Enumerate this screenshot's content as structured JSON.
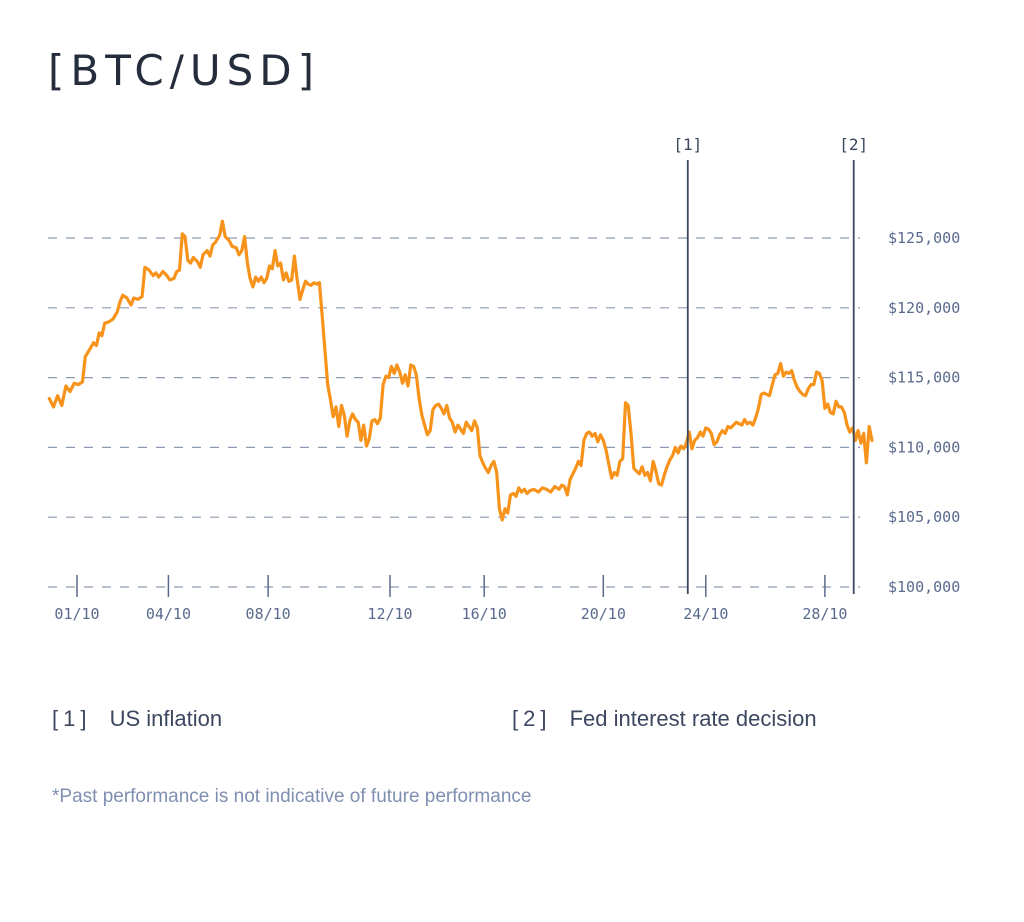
{
  "title": "[BTC/USD]",
  "chart_data": {
    "type": "line",
    "title": "[BTC/USD]",
    "xlabel": "",
    "ylabel": "",
    "line_color": "#f7931a",
    "grid": true,
    "grid_style": "dashed",
    "y_axis_position": "right",
    "ylim": [
      100000,
      125000
    ],
    "xlim_days": [
      0.0,
      30.6
    ],
    "y_ticks": [
      {
        "value": 125000,
        "label": "$125,000"
      },
      {
        "value": 120000,
        "label": "$120,000"
      },
      {
        "value": 115000,
        "label": "$115,000"
      },
      {
        "value": 110000,
        "label": "$110,000"
      },
      {
        "value": 105000,
        "label": "$105,000"
      },
      {
        "value": 100000,
        "label": "$100,000"
      }
    ],
    "x_ticks": [
      {
        "day": 1,
        "label": "01/10"
      },
      {
        "day": 4.3,
        "label": "04/10"
      },
      {
        "day": 7.9,
        "label": "08/10"
      },
      {
        "day": 12.3,
        "label": "12/10"
      },
      {
        "day": 15.7,
        "label": "16/10"
      },
      {
        "day": 20.0,
        "label": "20/10"
      },
      {
        "day": 23.7,
        "label": "24/10"
      },
      {
        "day": 28.0,
        "label": "28/10"
      }
    ],
    "markers": [
      {
        "day": 23.05,
        "label": "[1]"
      },
      {
        "day": 29.04,
        "label": "[2]"
      }
    ],
    "series": [
      {
        "name": "BTC/USD",
        "points": [
          [
            0.0,
            113500
          ],
          [
            0.15,
            112900
          ],
          [
            0.3,
            113700
          ],
          [
            0.45,
            113000
          ],
          [
            0.6,
            114400
          ],
          [
            0.75,
            114000
          ],
          [
            0.9,
            114600
          ],
          [
            1.05,
            114500
          ],
          [
            1.2,
            114700
          ],
          [
            1.3,
            116500
          ],
          [
            1.45,
            117000
          ],
          [
            1.6,
            117500
          ],
          [
            1.7,
            117300
          ],
          [
            1.8,
            118200
          ],
          [
            1.9,
            118000
          ],
          [
            2.0,
            118900
          ],
          [
            2.15,
            119000
          ],
          [
            2.3,
            119200
          ],
          [
            2.45,
            119700
          ],
          [
            2.55,
            120400
          ],
          [
            2.65,
            120900
          ],
          [
            2.8,
            120700
          ],
          [
            2.95,
            120200
          ],
          [
            3.05,
            120700
          ],
          [
            3.2,
            120600
          ],
          [
            3.35,
            120800
          ],
          [
            3.45,
            122900
          ],
          [
            3.6,
            122700
          ],
          [
            3.75,
            122300
          ],
          [
            3.85,
            122500
          ],
          [
            3.95,
            122200
          ],
          [
            4.1,
            122600
          ],
          [
            4.25,
            122300
          ],
          [
            4.35,
            122000
          ],
          [
            4.5,
            122100
          ],
          [
            4.6,
            122600
          ],
          [
            4.7,
            122700
          ],
          [
            4.8,
            125300
          ],
          [
            4.9,
            125100
          ],
          [
            5.0,
            123400
          ],
          [
            5.1,
            123200
          ],
          [
            5.2,
            123600
          ],
          [
            5.35,
            123300
          ],
          [
            5.45,
            122900
          ],
          [
            5.55,
            123800
          ],
          [
            5.7,
            124100
          ],
          [
            5.8,
            123700
          ],
          [
            5.9,
            124500
          ],
          [
            6.0,
            124700
          ],
          [
            6.15,
            125200
          ],
          [
            6.25,
            126200
          ],
          [
            6.35,
            125100
          ],
          [
            6.5,
            124800
          ],
          [
            6.6,
            124400
          ],
          [
            6.75,
            124300
          ],
          [
            6.85,
            123800
          ],
          [
            6.95,
            124100
          ],
          [
            7.05,
            125100
          ],
          [
            7.15,
            123200
          ],
          [
            7.25,
            122100
          ],
          [
            7.35,
            121500
          ],
          [
            7.45,
            122200
          ],
          [
            7.55,
            121900
          ],
          [
            7.65,
            122200
          ],
          [
            7.75,
            121800
          ],
          [
            7.85,
            122100
          ],
          [
            7.95,
            123000
          ],
          [
            8.05,
            122800
          ],
          [
            8.15,
            124100
          ],
          [
            8.25,
            123000
          ],
          [
            8.35,
            123200
          ],
          [
            8.45,
            122000
          ],
          [
            8.55,
            122500
          ],
          [
            8.65,
            121900
          ],
          [
            8.75,
            122000
          ],
          [
            8.85,
            123700
          ],
          [
            8.95,
            122000
          ],
          [
            9.05,
            120600
          ],
          [
            9.15,
            121300
          ],
          [
            9.25,
            121900
          ],
          [
            9.35,
            121700
          ],
          [
            9.45,
            121600
          ],
          [
            9.55,
            121800
          ],
          [
            9.65,
            121700
          ],
          [
            9.75,
            121800
          ],
          [
            9.85,
            119500
          ],
          [
            9.95,
            117000
          ],
          [
            10.05,
            114500
          ],
          [
            10.15,
            113400
          ],
          [
            10.25,
            112200
          ],
          [
            10.35,
            112900
          ],
          [
            10.45,
            111500
          ],
          [
            10.55,
            113000
          ],
          [
            10.65,
            112300
          ],
          [
            10.75,
            110800
          ],
          [
            10.85,
            111900
          ],
          [
            10.95,
            112400
          ],
          [
            11.05,
            112000
          ],
          [
            11.15,
            111800
          ],
          [
            11.25,
            110500
          ],
          [
            11.35,
            111600
          ],
          [
            11.45,
            110100
          ],
          [
            11.55,
            110600
          ],
          [
            11.65,
            111900
          ],
          [
            11.75,
            112000
          ],
          [
            11.85,
            111700
          ],
          [
            11.95,
            112100
          ],
          [
            12.05,
            114500
          ],
          [
            12.15,
            115100
          ],
          [
            12.25,
            115000
          ],
          [
            12.35,
            115800
          ],
          [
            12.45,
            115300
          ],
          [
            12.55,
            115900
          ],
          [
            12.65,
            115400
          ],
          [
            12.75,
            114600
          ],
          [
            12.85,
            115200
          ],
          [
            12.95,
            114400
          ],
          [
            13.05,
            115900
          ],
          [
            13.15,
            115800
          ],
          [
            13.25,
            115200
          ],
          [
            13.35,
            113500
          ],
          [
            13.45,
            112300
          ],
          [
            13.55,
            111600
          ],
          [
            13.65,
            110900
          ],
          [
            13.75,
            111200
          ],
          [
            13.85,
            112700
          ],
          [
            13.95,
            113000
          ],
          [
            14.05,
            113100
          ],
          [
            14.15,
            112800
          ],
          [
            14.25,
            112400
          ],
          [
            14.35,
            113000
          ],
          [
            14.45,
            112100
          ],
          [
            14.55,
            111800
          ],
          [
            14.65,
            111100
          ],
          [
            14.75,
            111600
          ],
          [
            14.85,
            111300
          ],
          [
            14.95,
            111000
          ],
          [
            15.05,
            111800
          ],
          [
            15.15,
            111500
          ],
          [
            15.25,
            111200
          ],
          [
            15.35,
            111900
          ],
          [
            15.45,
            111400
          ],
          [
            15.55,
            109400
          ],
          [
            15.65,
            108900
          ],
          [
            15.75,
            108500
          ],
          [
            15.85,
            108200
          ],
          [
            15.95,
            108700
          ],
          [
            16.05,
            109000
          ],
          [
            16.15,
            108200
          ],
          [
            16.25,
            105600
          ],
          [
            16.35,
            104800
          ],
          [
            16.45,
            105600
          ],
          [
            16.55,
            105300
          ],
          [
            16.65,
            106600
          ],
          [
            16.75,
            106700
          ],
          [
            16.85,
            106500
          ],
          [
            16.95,
            107100
          ],
          [
            17.05,
            106800
          ],
          [
            17.15,
            107000
          ],
          [
            17.25,
            106700
          ],
          [
            17.35,
            106900
          ],
          [
            17.5,
            107000
          ],
          [
            17.65,
            106800
          ],
          [
            17.8,
            107100
          ],
          [
            17.95,
            107000
          ],
          [
            18.1,
            106800
          ],
          [
            18.25,
            107200
          ],
          [
            18.4,
            107000
          ],
          [
            18.5,
            107300
          ],
          [
            18.6,
            107200
          ],
          [
            18.7,
            106600
          ],
          [
            18.8,
            107700
          ],
          [
            18.9,
            108100
          ],
          [
            19.0,
            108500
          ],
          [
            19.1,
            109000
          ],
          [
            19.2,
            108700
          ],
          [
            19.3,
            110500
          ],
          [
            19.4,
            111000
          ],
          [
            19.5,
            111100
          ],
          [
            19.6,
            110800
          ],
          [
            19.7,
            111000
          ],
          [
            19.8,
            110400
          ],
          [
            19.9,
            110900
          ],
          [
            20.0,
            110500
          ],
          [
            20.1,
            109800
          ],
          [
            20.2,
            108800
          ],
          [
            20.3,
            107800
          ],
          [
            20.4,
            108200
          ],
          [
            20.5,
            108000
          ],
          [
            20.6,
            109000
          ],
          [
            20.7,
            109200
          ],
          [
            20.8,
            113200
          ],
          [
            20.9,
            113000
          ],
          [
            21.0,
            111000
          ],
          [
            21.1,
            108500
          ],
          [
            21.2,
            108300
          ],
          [
            21.3,
            108100
          ],
          [
            21.4,
            108600
          ],
          [
            21.5,
            108000
          ],
          [
            21.6,
            108200
          ],
          [
            21.7,
            107600
          ],
          [
            21.8,
            109000
          ],
          [
            21.9,
            108300
          ],
          [
            22.0,
            107400
          ],
          [
            22.1,
            107300
          ],
          [
            22.2,
            108000
          ],
          [
            22.3,
            108600
          ],
          [
            22.4,
            109100
          ],
          [
            22.5,
            109400
          ],
          [
            22.6,
            110000
          ],
          [
            22.7,
            109600
          ],
          [
            22.8,
            110100
          ],
          [
            22.9,
            109900
          ],
          [
            23.0,
            110300
          ],
          [
            23.1,
            111100
          ],
          [
            23.2,
            109900
          ],
          [
            23.3,
            110500
          ],
          [
            23.4,
            110700
          ],
          [
            23.5,
            111100
          ],
          [
            23.6,
            110800
          ],
          [
            23.7,
            111400
          ],
          [
            23.8,
            111300
          ],
          [
            23.9,
            111000
          ],
          [
            24.0,
            110200
          ],
          [
            24.1,
            110400
          ],
          [
            24.2,
            110900
          ],
          [
            24.3,
            111200
          ],
          [
            24.4,
            111000
          ],
          [
            24.5,
            111500
          ],
          [
            24.6,
            111400
          ],
          [
            24.7,
            111600
          ],
          [
            24.8,
            111800
          ],
          [
            24.9,
            111700
          ],
          [
            25.0,
            111600
          ],
          [
            25.1,
            112000
          ],
          [
            25.2,
            111700
          ],
          [
            25.3,
            111800
          ],
          [
            25.4,
            111600
          ],
          [
            25.5,
            112100
          ],
          [
            25.6,
            112800
          ],
          [
            25.7,
            113800
          ],
          [
            25.8,
            113900
          ],
          [
            25.9,
            113800
          ],
          [
            26.0,
            113700
          ],
          [
            26.1,
            114500
          ],
          [
            26.2,
            115200
          ],
          [
            26.3,
            115300
          ],
          [
            26.4,
            116000
          ],
          [
            26.5,
            115100
          ],
          [
            26.6,
            115400
          ],
          [
            26.7,
            115300
          ],
          [
            26.8,
            115500
          ],
          [
            26.9,
            114800
          ],
          [
            27.0,
            114300
          ],
          [
            27.1,
            114000
          ],
          [
            27.2,
            113800
          ],
          [
            27.3,
            113700
          ],
          [
            27.4,
            114200
          ],
          [
            27.5,
            114500
          ],
          [
            27.6,
            114500
          ],
          [
            27.7,
            115400
          ],
          [
            27.8,
            115300
          ],
          [
            27.9,
            114800
          ],
          [
            28.0,
            112800
          ],
          [
            28.1,
            113100
          ],
          [
            28.2,
            112500
          ],
          [
            28.3,
            112400
          ],
          [
            28.4,
            113300
          ],
          [
            28.5,
            112900
          ],
          [
            28.6,
            112900
          ],
          [
            28.7,
            112500
          ],
          [
            28.8,
            111600
          ],
          [
            28.9,
            111100
          ],
          [
            29.0,
            111400
          ],
          [
            29.1,
            110500
          ],
          [
            29.2,
            111200
          ],
          [
            29.3,
            110300
          ],
          [
            29.4,
            111000
          ],
          [
            29.5,
            108900
          ],
          [
            29.6,
            111500
          ],
          [
            29.7,
            110500
          ]
        ]
      }
    ]
  },
  "legend": [
    {
      "index": "[1]",
      "label": "US inflation"
    },
    {
      "index": "[2]",
      "label": "Fed interest rate decision"
    }
  ],
  "disclaimer": "*Past performance is not indicative of future performance"
}
